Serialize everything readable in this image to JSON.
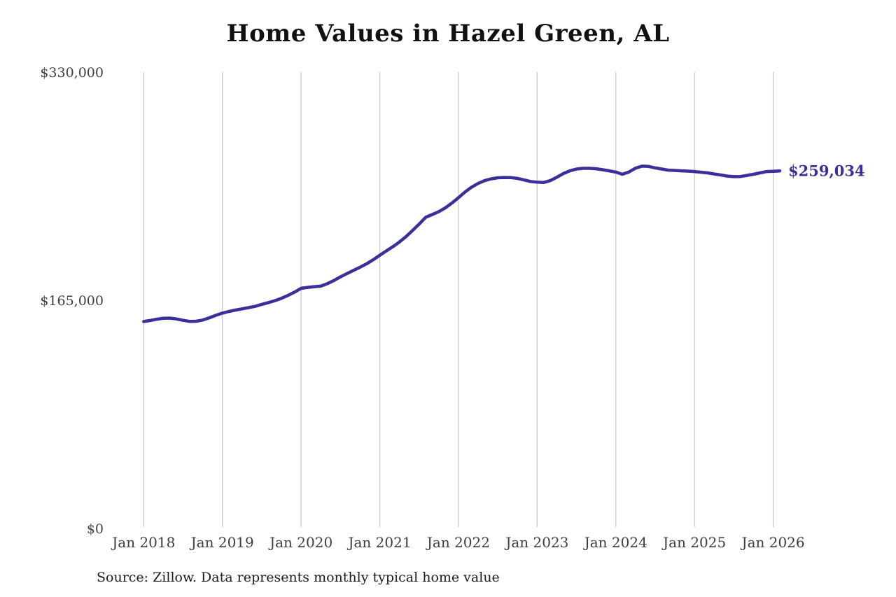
{
  "title": "Home Values in Hazel Green, AL",
  "source_note": "Source: Zillow. Data represents monthly typical home value",
  "latest_value_label": "$259,034",
  "colors": {
    "line": "#39309b",
    "grid": "#c9c9c9",
    "title_text": "#111111",
    "axis_text": "#3f3f3f",
    "background": "#ffffff"
  },
  "chart_data": {
    "type": "line",
    "title": "Home Values in Hazel Green, AL",
    "series_name": "Monthly typical home value",
    "xlabel": "",
    "ylabel": "",
    "ylim": [
      0,
      330000
    ],
    "y_tick_values": [
      0,
      165000,
      330000
    ],
    "y_tick_labels": [
      "$0",
      "$165,000",
      "$330,000"
    ],
    "x_tick_labels": [
      "Jan 2018",
      "Jan 2019",
      "Jan 2020",
      "Jan 2021",
      "Jan 2022",
      "Jan 2023",
      "Jan 2024",
      "Jan 2025",
      "Jan 2026"
    ],
    "x_start": "2018-01",
    "x_interval": "month",
    "grid": "vertical-only",
    "legend": "none",
    "latest_value": 259034,
    "values": [
      150100,
      150900,
      151800,
      152500,
      152600,
      152000,
      151000,
      150200,
      150300,
      151200,
      152800,
      154600,
      156200,
      157400,
      158400,
      159300,
      160200,
      161100,
      162500,
      163800,
      165200,
      166900,
      169000,
      171400,
      174100,
      174800,
      175300,
      175700,
      177500,
      179800,
      182400,
      184800,
      187100,
      189400,
      191900,
      194800,
      198000,
      201200,
      204300,
      207600,
      211500,
      216000,
      220500,
      225500,
      227500,
      229600,
      232300,
      235800,
      239700,
      243800,
      247300,
      250000,
      252000,
      253300,
      254100,
      254300,
      254200,
      253600,
      252500,
      251400,
      250900,
      250700,
      252000,
      254500,
      257100,
      259100,
      260400,
      260900,
      260900,
      260600,
      259900,
      259100,
      258200,
      256600,
      258300,
      261000,
      262500,
      262300,
      261200,
      260400,
      259600,
      259400,
      259100,
      258900,
      258600,
      258100,
      257600,
      256800,
      256100,
      255300,
      254900,
      255000,
      255800,
      256600,
      257600,
      258600,
      258800,
      259034
    ]
  }
}
